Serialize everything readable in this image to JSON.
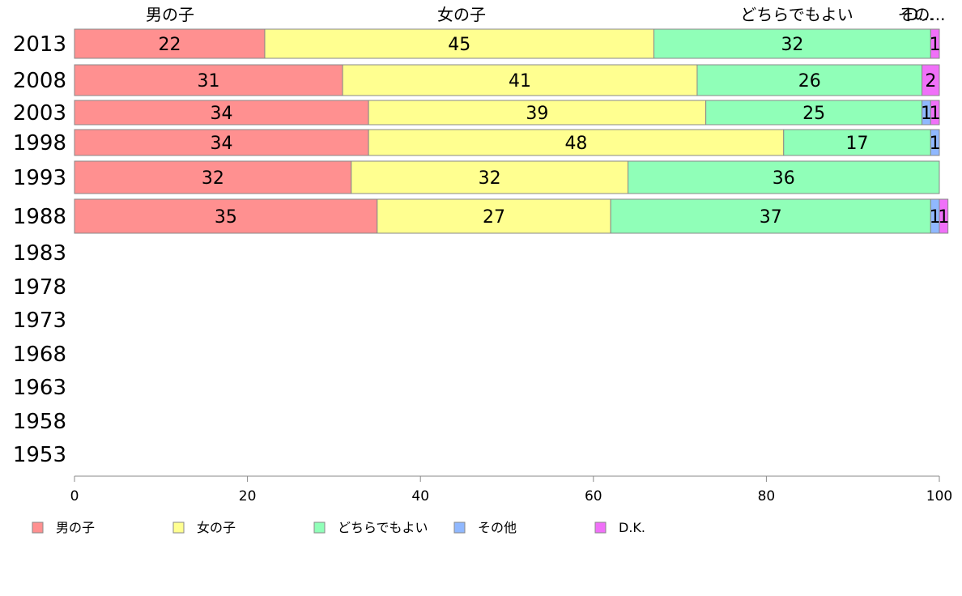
{
  "chart_data": {
    "type": "bar",
    "orientation": "horizontal",
    "stacked": true,
    "percent": true,
    "categories": [
      "2013",
      "2008",
      "2003",
      "1998",
      "1993",
      "1988",
      "1983",
      "1978",
      "1973",
      "1968",
      "1963",
      "1958",
      "1953"
    ],
    "series": [
      {
        "name": "男の子",
        "color": "#FF9090",
        "values": [
          22,
          31,
          34,
          34,
          32,
          35,
          null,
          null,
          null,
          null,
          null,
          null,
          null
        ]
      },
      {
        "name": "女の子",
        "color": "#FFFF90",
        "values": [
          45,
          41,
          39,
          48,
          32,
          27,
          null,
          null,
          null,
          null,
          null,
          null,
          null
        ]
      },
      {
        "name": "どちらでもよい",
        "color": "#90FFB8",
        "values": [
          32,
          26,
          25,
          17,
          36,
          37,
          null,
          null,
          null,
          null,
          null,
          null,
          null
        ]
      },
      {
        "name": "その他",
        "color": "#90B8FF",
        "values": [
          0,
          0,
          1,
          1,
          0,
          1,
          null,
          null,
          null,
          null,
          null,
          null,
          null
        ]
      },
      {
        "name": "D.K.",
        "color": "#F070F8",
        "values": [
          1,
          2,
          1,
          0,
          0,
          1,
          null,
          null,
          null,
          null,
          null,
          null,
          null
        ]
      }
    ],
    "column_headers": [
      "男の子",
      "女の子",
      "どちらでもよい",
      "その...",
      "D..."
    ],
    "xlim": [
      0,
      100
    ],
    "xticks": [
      "0",
      "20",
      "40",
      "60",
      "80",
      "100"
    ],
    "grid": false,
    "legend_position": "bottom"
  }
}
